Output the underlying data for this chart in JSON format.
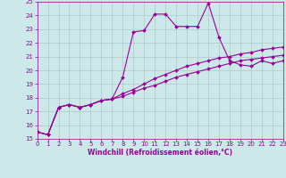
{
  "xlabel": "Windchill (Refroidissement éolien,°C)",
  "x_values": [
    0,
    1,
    2,
    3,
    4,
    5,
    6,
    7,
    8,
    9,
    10,
    11,
    12,
    13,
    14,
    15,
    16,
    17,
    18,
    19,
    20,
    21,
    22,
    23
  ],
  "line1_y": [
    15.5,
    15.3,
    17.3,
    17.5,
    17.3,
    17.5,
    17.8,
    17.9,
    19.5,
    22.8,
    22.9,
    24.1,
    24.1,
    23.2,
    23.2,
    23.2,
    24.9,
    22.4,
    20.7,
    20.4,
    20.3,
    20.7,
    20.5,
    20.7
  ],
  "line2_y": [
    15.5,
    15.3,
    17.3,
    17.5,
    17.3,
    17.5,
    17.8,
    17.9,
    18.3,
    18.6,
    19.0,
    19.4,
    19.7,
    20.0,
    20.3,
    20.5,
    20.7,
    20.9,
    21.0,
    21.2,
    21.3,
    21.5,
    21.6,
    21.7
  ],
  "line3_y": [
    15.5,
    15.3,
    17.3,
    17.5,
    17.3,
    17.5,
    17.8,
    17.9,
    18.1,
    18.4,
    18.7,
    18.9,
    19.2,
    19.5,
    19.7,
    19.9,
    20.1,
    20.3,
    20.5,
    20.7,
    20.8,
    20.9,
    21.0,
    21.1
  ],
  "ylim": [
    15,
    25
  ],
  "xlim": [
    0,
    23
  ],
  "yticks": [
    15,
    16,
    17,
    18,
    19,
    20,
    21,
    22,
    23,
    24,
    25
  ],
  "xticks": [
    0,
    1,
    2,
    3,
    4,
    5,
    6,
    7,
    8,
    9,
    10,
    11,
    12,
    13,
    14,
    15,
    16,
    17,
    18,
    19,
    20,
    21,
    22,
    23
  ],
  "line_color": "#990099",
  "bg_color": "#cce8e8",
  "grid_color": "#aacccc",
  "axis_label_color": "#990099",
  "tick_color": "#990099",
  "tick_fontsize": 5,
  "xlabel_fontsize": 5.5,
  "marker_size": 2.0,
  "linewidth": 0.8
}
